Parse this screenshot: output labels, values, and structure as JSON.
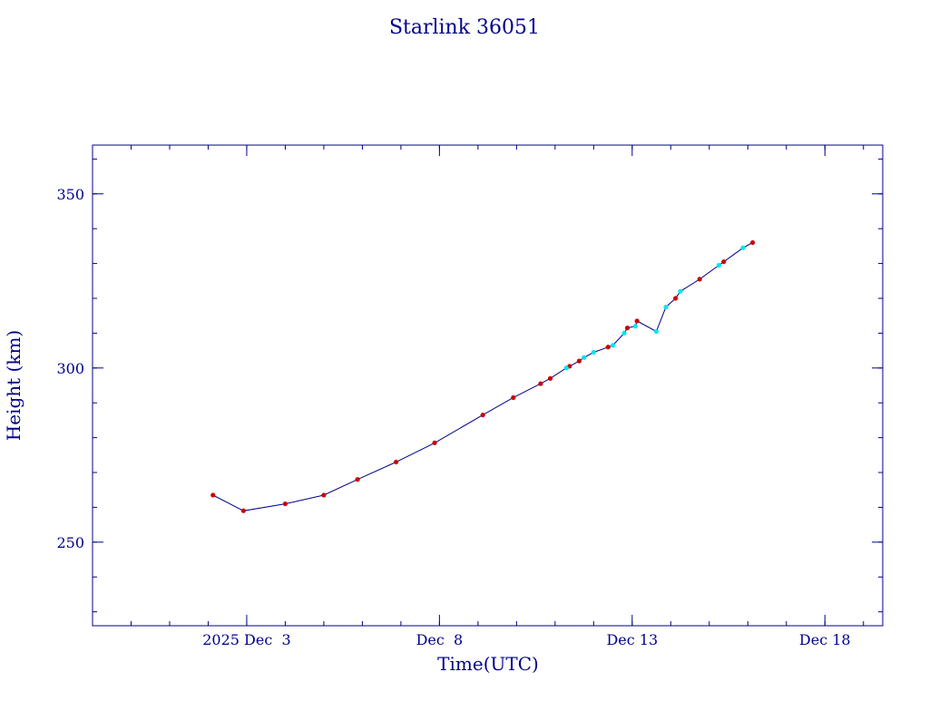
{
  "chart_data": {
    "type": "line",
    "title": "Starlink 36051",
    "xlabel": "Time(UTC)",
    "ylabel": "Height (km)",
    "x_ticks": [
      {
        "date": "2025-12-03",
        "label": "2025 Dec  3"
      },
      {
        "date": "2025-12-08",
        "label": "Dec  8"
      },
      {
        "date": "2025-12-13",
        "label": "Dec 13"
      },
      {
        "date": "2025-12-18",
        "label": "Dec 18"
      }
    ],
    "y_ticks": [
      250,
      300,
      350
    ],
    "xlim": [
      "2025-11-29T00:00",
      "2025-12-19T12:00"
    ],
    "ylim": [
      226,
      364
    ],
    "grid": false,
    "legend": "none",
    "colors": {
      "axis": "#00008b",
      "line": "#00008b",
      "series_red": "#cc0000",
      "series_cyan": "#00e5ee"
    },
    "series": [
      {
        "color": "#cc0000",
        "points": [
          {
            "x": "2025-12-02T03:00",
            "y": 263.5
          },
          {
            "x": "2025-12-02T22:00",
            "y": 259.0
          },
          {
            "x": "2025-12-04T00:00",
            "y": 261.0
          },
          {
            "x": "2025-12-05T00:00",
            "y": 263.5
          },
          {
            "x": "2025-12-05T21:00",
            "y": 268.0
          },
          {
            "x": "2025-12-06T21:00",
            "y": 273.0
          },
          {
            "x": "2025-12-07T21:00",
            "y": 278.5
          },
          {
            "x": "2025-12-09T03:00",
            "y": 286.5
          },
          {
            "x": "2025-12-09T22:00",
            "y": 291.5
          },
          {
            "x": "2025-12-10T15:00",
            "y": 295.5
          },
          {
            "x": "2025-12-10T21:00",
            "y": 297.0
          },
          {
            "x": "2025-12-11T09:00",
            "y": 300.5
          },
          {
            "x": "2025-12-11T15:00",
            "y": 302.0
          },
          {
            "x": "2025-12-12T09:00",
            "y": 306.0
          },
          {
            "x": "2025-12-12T21:00",
            "y": 311.5
          },
          {
            "x": "2025-12-13T03:00",
            "y": 313.5
          },
          {
            "x": "2025-12-14T03:00",
            "y": 320.0
          },
          {
            "x": "2025-12-14T18:00",
            "y": 325.5
          },
          {
            "x": "2025-12-15T09:00",
            "y": 330.5
          },
          {
            "x": "2025-12-16T03:00",
            "y": 336.0
          }
        ]
      },
      {
        "color": "#00e5ee",
        "points": [
          {
            "x": "2025-12-11T07:00",
            "y": 300.0
          },
          {
            "x": "2025-12-11T18:00",
            "y": 303.0
          },
          {
            "x": "2025-12-12T00:00",
            "y": 304.5
          },
          {
            "x": "2025-12-12T12:00",
            "y": 306.5
          },
          {
            "x": "2025-12-12T19:00",
            "y": 310.0
          },
          {
            "x": "2025-12-13T02:00",
            "y": 312.0
          },
          {
            "x": "2025-12-13T15:00",
            "y": 310.5
          },
          {
            "x": "2025-12-13T21:00",
            "y": 317.5
          },
          {
            "x": "2025-12-14T06:00",
            "y": 322.0
          },
          {
            "x": "2025-12-15T06:00",
            "y": 329.5
          },
          {
            "x": "2025-12-15T21:00",
            "y": 334.5
          }
        ]
      }
    ]
  }
}
